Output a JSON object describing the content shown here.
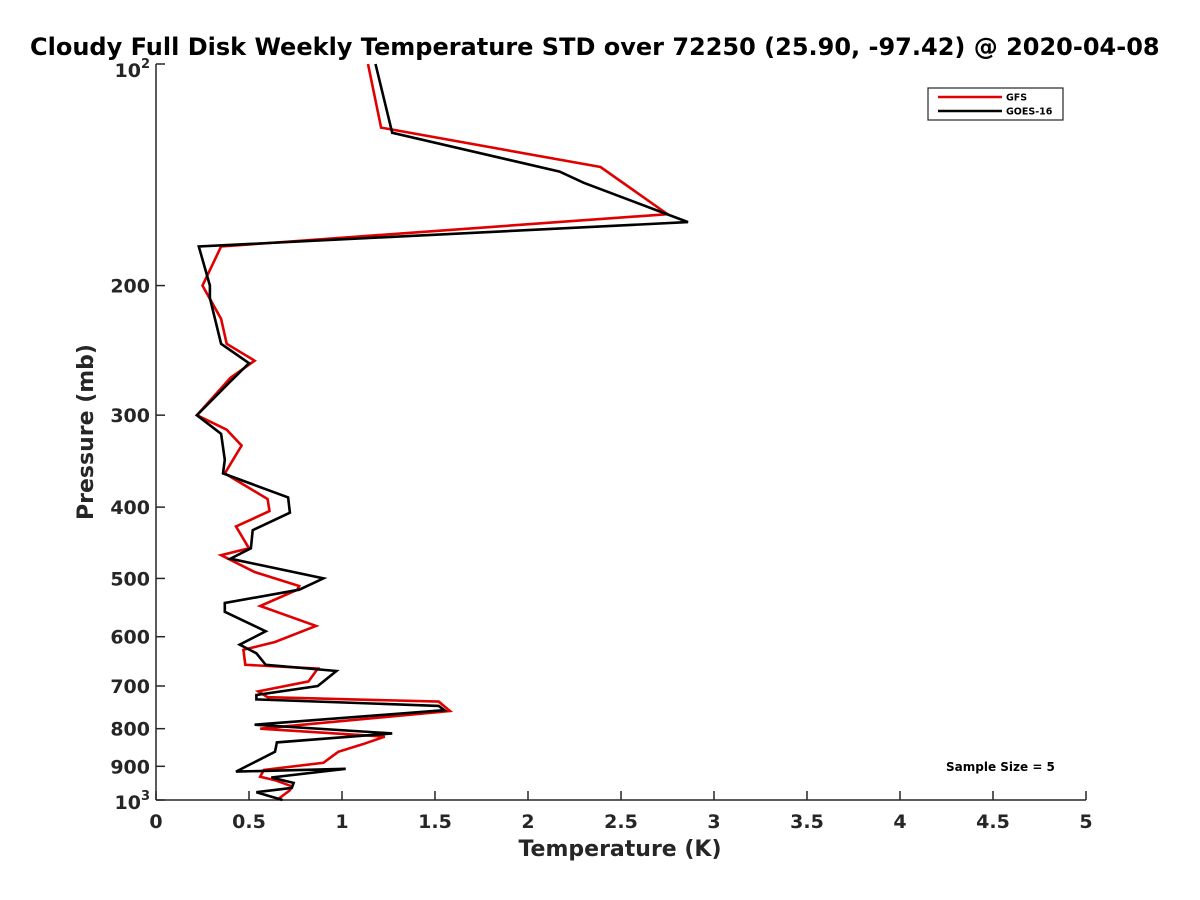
{
  "chart_data": {
    "type": "line",
    "title": "Cloudy Full Disk Weekly Temperature STD over 72250 (25.90, -97.42) @ 2020-04-08",
    "xlabel": "Temperature (K)",
    "ylabel": "Pressure (mb)",
    "xlim": [
      0,
      5
    ],
    "ylim": [
      100,
      1000
    ],
    "y_scale": "log",
    "y_reversed": true,
    "xticks": [
      "0",
      "0.5",
      "1",
      "1.5",
      "2",
      "2.5",
      "3",
      "3.5",
      "4",
      "4.5",
      "5"
    ],
    "yticks_plain": [
      "200",
      "300",
      "400",
      "500",
      "600",
      "700",
      "800",
      "900"
    ],
    "ytick_power_base": "10",
    "ytick_top_exp": "2",
    "ytick_bottom_exp": "3",
    "grid": false,
    "legend_position": "top-right",
    "annotation": "Sample Size = 5",
    "series": [
      {
        "name": "GFS",
        "color": "#e00000",
        "x": [
          1.14,
          1.21,
          2.39,
          2.75,
          0.35,
          0.25,
          0.35,
          0.38,
          0.53,
          0.4,
          0.22,
          0.38,
          0.46,
          0.37,
          0.6,
          0.61,
          0.43,
          0.5,
          0.35,
          0.53,
          0.77,
          0.76,
          0.56,
          0.86,
          0.64,
          0.47,
          0.48,
          0.87,
          0.82,
          0.55,
          0.6,
          1.52,
          1.58,
          0.56,
          1.23,
          1.11,
          0.98,
          0.9,
          0.58,
          0.56,
          0.64,
          0.73,
          0.72,
          0.65
        ],
        "y": [
          100,
          122,
          138,
          160,
          177,
          200,
          222,
          240,
          253,
          267,
          300,
          314,
          330,
          360,
          390,
          405,
          425,
          455,
          465,
          490,
          512,
          518,
          545,
          580,
          610,
          625,
          655,
          663,
          690,
          712,
          725,
          735,
          757,
          800,
          820,
          840,
          860,
          890,
          910,
          930,
          940,
          958,
          970,
          1000
        ]
      },
      {
        "name": "GOES-16",
        "color": "#000000",
        "x": [
          1.18,
          1.27,
          2.17,
          2.3,
          2.86,
          0.23,
          0.29,
          0.29,
          0.35,
          0.5,
          0.4,
          0.22,
          0.35,
          0.37,
          0.36,
          0.71,
          0.72,
          0.52,
          0.51,
          0.4,
          0.9,
          0.77,
          0.37,
          0.37,
          0.59,
          0.45,
          0.54,
          0.59,
          0.97,
          0.87,
          0.54,
          0.54,
          1.52,
          1.55,
          0.53,
          1.27,
          0.65,
          0.64,
          0.43,
          1.02,
          0.62,
          0.74,
          0.73,
          0.54,
          0.68
        ],
        "y": [
          100,
          124,
          140,
          145,
          164,
          177,
          200,
          208,
          240,
          255,
          270,
          300,
          318,
          345,
          360,
          388,
          407,
          430,
          455,
          470,
          500,
          518,
          540,
          555,
          590,
          615,
          632,
          655,
          668,
          700,
          720,
          730,
          745,
          755,
          790,
          812,
          835,
          860,
          915,
          907,
          932,
          948,
          963,
          976,
          1000
        ]
      }
    ]
  }
}
